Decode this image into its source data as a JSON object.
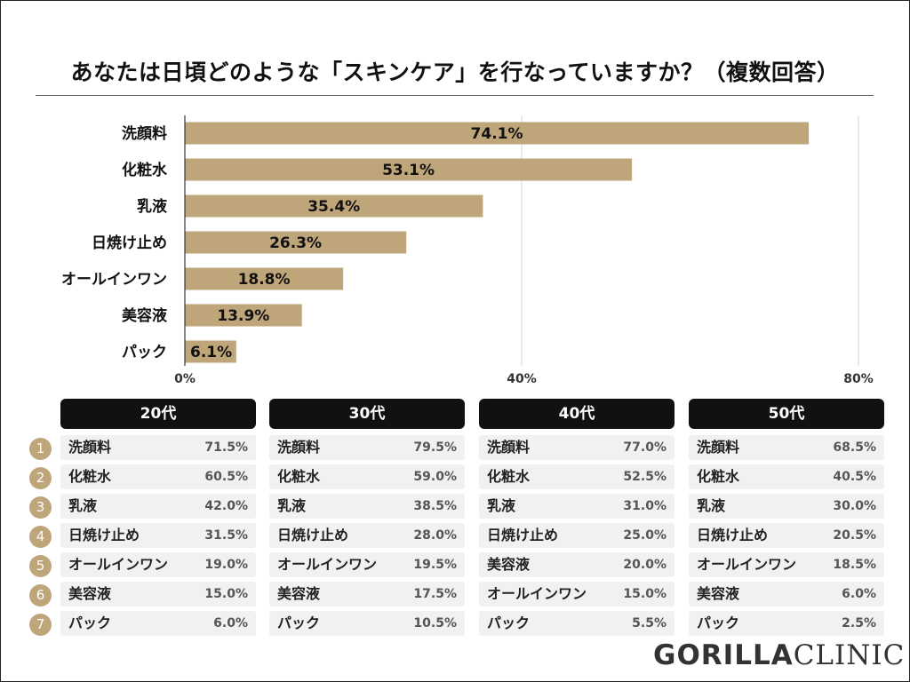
{
  "title": "あなたは日頃どのような「スキンケア」を行なっていますか？（複数回答）",
  "chart_data": {
    "type": "bar",
    "orientation": "horizontal",
    "categories": [
      "洗顔料",
      "化粧水",
      "乳液",
      "日焼け止め",
      "オールインワン",
      "美容液",
      "パック"
    ],
    "values": [
      74.1,
      53.1,
      35.4,
      26.3,
      18.8,
      13.9,
      6.1
    ],
    "value_labels": [
      "74.1%",
      "53.1%",
      "35.4%",
      "26.3%",
      "18.8%",
      "13.9%",
      "6.1%"
    ],
    "xlim": [
      0,
      80
    ],
    "xticks": [
      0,
      40,
      80
    ],
    "xtick_labels": [
      "0%",
      "40%",
      "80%"
    ],
    "grid": true,
    "bar_color": "#bfa57a"
  },
  "rank_numbers": [
    "1",
    "2",
    "3",
    "4",
    "5",
    "6",
    "7"
  ],
  "age_groups": [
    {
      "header": "20代",
      "rows": [
        {
          "label": "洗顔料",
          "value": "71.5%"
        },
        {
          "label": "化粧水",
          "value": "60.5%"
        },
        {
          "label": "乳液",
          "value": "42.0%"
        },
        {
          "label": "日焼け止め",
          "value": "31.5%"
        },
        {
          "label": "オールインワン",
          "value": "19.0%"
        },
        {
          "label": "美容液",
          "value": "15.0%"
        },
        {
          "label": "パック",
          "value": "6.0%"
        }
      ]
    },
    {
      "header": "30代",
      "rows": [
        {
          "label": "洗顔料",
          "value": "79.5%"
        },
        {
          "label": "化粧水",
          "value": "59.0%"
        },
        {
          "label": "乳液",
          "value": "38.5%"
        },
        {
          "label": "日焼け止め",
          "value": "28.0%"
        },
        {
          "label": "オールインワン",
          "value": "19.5%"
        },
        {
          "label": "美容液",
          "value": "17.5%"
        },
        {
          "label": "パック",
          "value": "10.5%"
        }
      ]
    },
    {
      "header": "40代",
      "rows": [
        {
          "label": "洗顔料",
          "value": "77.0%"
        },
        {
          "label": "化粧水",
          "value": "52.5%"
        },
        {
          "label": "乳液",
          "value": "31.0%"
        },
        {
          "label": "日焼け止め",
          "value": "25.0%"
        },
        {
          "label": "美容液",
          "value": "20.0%"
        },
        {
          "label": "オールインワン",
          "value": "15.0%"
        },
        {
          "label": "パック",
          "value": "5.5%"
        }
      ]
    },
    {
      "header": "50代",
      "rows": [
        {
          "label": "洗顔料",
          "value": "68.5%"
        },
        {
          "label": "化粧水",
          "value": "40.5%"
        },
        {
          "label": "乳液",
          "value": "30.0%"
        },
        {
          "label": "日焼け止め",
          "value": "20.5%"
        },
        {
          "label": "オールインワン",
          "value": "18.5%"
        },
        {
          "label": "美容液",
          "value": "6.0%"
        },
        {
          "label": "パック",
          "value": "2.5%"
        }
      ]
    }
  ],
  "logo": {
    "bold_part": "GORILLA",
    "thin_part": "CLINIC"
  }
}
